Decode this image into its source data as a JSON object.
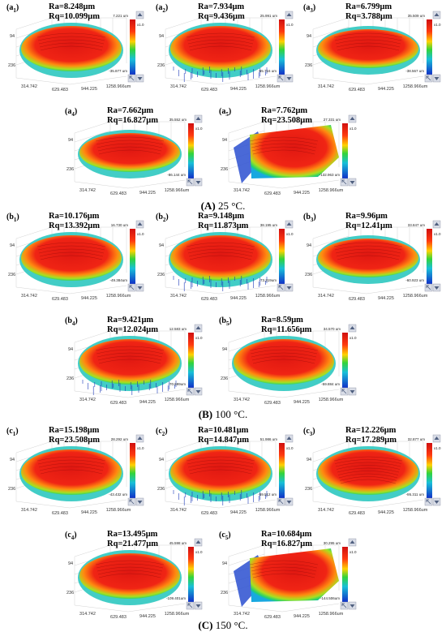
{
  "axis_ticks": [
    "314.742",
    "629.483",
    "944.225",
    "1258.966um"
  ],
  "y_ticks": [
    "94",
    "236"
  ],
  "colorbar_scale": "x1.0",
  "groups": [
    {
      "caption_letter": "(A)",
      "caption_rest": " 25 °C.",
      "panels": [
        {
          "letter": "a",
          "index": "1",
          "ra": "Ra=8.248μm",
          "rq": "Rq=10.099μm",
          "cb_top": "7.221 um",
          "cb_bottom": "-35.877 um"
        },
        {
          "letter": "a",
          "index": "2",
          "ra": "Ra=7.934μm",
          "rq": "Rq=9.436μm",
          "cb_top": "25.991 um",
          "cb_bottom": "-65.716 um"
        },
        {
          "letter": "a",
          "index": "3",
          "ra": "Ra=6.799μm",
          "rq": "Rq=3.788μm",
          "cb_top": "35.509 um",
          "cb_bottom": "-38.567 um"
        },
        {
          "letter": "a",
          "index": "4",
          "ra": "Ra=7.662μm",
          "rq": "Rq=16.827μm",
          "cb_top": "35.552 um",
          "cb_bottom": "-86.144 um"
        },
        {
          "letter": "a",
          "index": "5",
          "ra": "Ra=7.762μm",
          "rq": "Rq=23.508μm",
          "cb_top": "27.331 um",
          "cb_bottom": "-132.963 um"
        }
      ]
    },
    {
      "caption_letter": "(B)",
      "caption_rest": " 100 °C.",
      "panels": [
        {
          "letter": "b",
          "index": "1",
          "ra": "Ra=10.176μm",
          "rq": "Rq=13.392μm",
          "cb_top": "16.730 um",
          "cb_bottom": "-49.384um"
        },
        {
          "letter": "b",
          "index": "2",
          "ra": "Ra=9.148μm",
          "rq": "Rq=11.873μm",
          "cb_top": "38.195 um",
          "cb_bottom": "-73.319um"
        },
        {
          "letter": "b",
          "index": "3",
          "ra": "Ra=9.96μm",
          "rq": "Rq=12.41μm",
          "cb_top": "33.847 um",
          "cb_bottom": "-60.923 um"
        },
        {
          "letter": "b",
          "index": "4",
          "ra": "Ra=9.421μm",
          "rq": "Rq=12.024μm",
          "cb_top": "12.583 um",
          "cb_bottom": "-70.599um"
        },
        {
          "letter": "b",
          "index": "5",
          "ra": "Ra=8.59μm",
          "rq": "Rq=11.656μm",
          "cb_top": "34.570 um",
          "cb_bottom": "-59.884 um"
        }
      ]
    },
    {
      "caption_letter": "(C)",
      "caption_rest": " 150 °C.",
      "panels": [
        {
          "letter": "c",
          "index": "1",
          "ra": "Ra=15.198μm",
          "rq": "Rq=23.508μm",
          "cb_top": "28.292 um",
          "cb_bottom": "-43.432 um"
        },
        {
          "letter": "c",
          "index": "2",
          "ra": "Ra=10.481μm",
          "rq": "Rq=14.847μm",
          "cb_top": "51.986 um",
          "cb_bottom": "-59.512 um"
        },
        {
          "letter": "c",
          "index": "3",
          "ra": "Ra=12.226μm",
          "rq": "Rq=17.289μm",
          "cb_top": "32.877 um",
          "cb_bottom": "-95.311 um"
        },
        {
          "letter": "c",
          "index": "4",
          "ra": "Ra=13.495μm",
          "rq": "Rq=21.477μm",
          "cb_top": "45.598 um",
          "cb_bottom": "-109.401um"
        },
        {
          "letter": "c",
          "index": "5",
          "ra": "Ra=10.684μm",
          "rq": "Rq=16.827μm",
          "cb_top": "30.295 um",
          "cb_bottom": "-144.506um"
        }
      ]
    }
  ]
}
